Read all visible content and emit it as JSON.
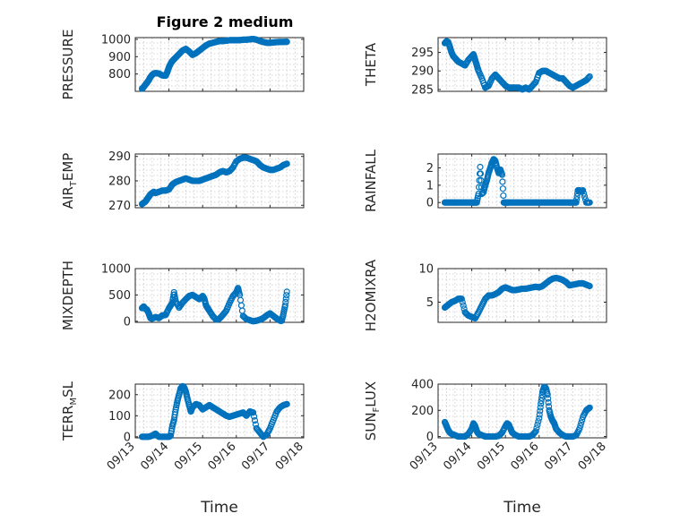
{
  "figure_title": "Figure 2 medium",
  "chart_data": [
    {
      "type": "scatter",
      "title": "Figure 2 medium",
      "ylabel": "PRESSURE",
      "xlabel": "",
      "xlim": [
        0,
        5
      ],
      "ylim": [
        700,
        1010
      ],
      "yticks": [
        800,
        900,
        1000
      ],
      "grid": true,
      "xticklabels": [
        "09/13",
        "09/14",
        "09/15",
        "09/16",
        "09/17",
        "09/18"
      ],
      "x": [
        0.2,
        0.22,
        0.25,
        0.3,
        0.35,
        0.4,
        0.45,
        0.5,
        0.55,
        0.6,
        0.7,
        0.8,
        0.9,
        0.95,
        1.0,
        1.05,
        1.1,
        1.15,
        1.2,
        1.3,
        1.4,
        1.5,
        1.6,
        1.7,
        1.8,
        1.9,
        2.0,
        2.1,
        2.2,
        2.3,
        2.4,
        2.5,
        2.6,
        2.7,
        2.8,
        2.9,
        3.0,
        3.1,
        3.2,
        3.3,
        3.4,
        3.5,
        3.6,
        3.7,
        3.8,
        3.9,
        4.0,
        4.1,
        4.2,
        4.3,
        4.4,
        4.5
      ],
      "y": [
        715,
        718,
        725,
        738,
        750,
        765,
        782,
        795,
        802,
        805,
        803,
        792,
        790,
        810,
        840,
        860,
        875,
        885,
        895,
        915,
        935,
        945,
        930,
        910,
        920,
        935,
        950,
        965,
        975,
        980,
        985,
        990,
        990,
        992,
        995,
        995,
        995,
        995,
        998,
        998,
        1000,
        1002,
        998,
        990,
        985,
        980,
        980,
        982,
        984,
        985,
        985,
        986
      ]
    },
    {
      "type": "scatter",
      "ylabel": "THETA",
      "xlabel": "",
      "xlim": [
        0,
        5
      ],
      "ylim": [
        284.5,
        299
      ],
      "yticks": [
        285,
        290,
        295
      ],
      "grid": true,
      "xticklabels": [
        "09/13",
        "09/14",
        "09/15",
        "09/16",
        "09/17",
        "09/18"
      ],
      "x": [
        0.2,
        0.25,
        0.3,
        0.35,
        0.4,
        0.45,
        0.5,
        0.55,
        0.6,
        0.7,
        0.8,
        0.9,
        1.0,
        1.05,
        1.1,
        1.15,
        1.2,
        1.3,
        1.4,
        1.5,
        1.6,
        1.7,
        1.8,
        1.9,
        2.0,
        2.1,
        2.2,
        2.3,
        2.4,
        2.5,
        2.6,
        2.7,
        2.8,
        2.9,
        3.0,
        3.1,
        3.2,
        3.3,
        3.4,
        3.5,
        3.6,
        3.7,
        3.8,
        3.9,
        4.0,
        4.1,
        4.2,
        4.3,
        4.4,
        4.5
      ],
      "y": [
        297.5,
        298,
        297.8,
        296.5,
        295,
        294,
        293.5,
        293,
        292.5,
        292,
        291.5,
        293,
        294,
        294.5,
        293,
        291.5,
        290,
        288,
        285.5,
        286,
        288,
        289,
        288,
        287,
        286,
        285.5,
        285.5,
        285.5,
        285.5,
        285,
        285.5,
        285,
        286,
        287,
        289.5,
        290,
        290,
        289.5,
        289,
        288.5,
        288,
        288,
        287,
        286,
        285.5,
        286,
        286.5,
        287,
        287.5,
        288.5
      ]
    },
    {
      "type": "scatter",
      "ylabel": "AIR_TEMP",
      "ylabel_main": "AIR",
      "ylabel_sub": "T",
      "ylabel_rest": "EMP",
      "xlabel": "",
      "xlim": [
        0,
        5
      ],
      "ylim": [
        269,
        291
      ],
      "yticks": [
        270,
        280,
        290
      ],
      "grid": true,
      "xticklabels": [
        "09/13",
        "09/14",
        "09/15",
        "09/16",
        "09/17",
        "09/18"
      ],
      "x": [
        0.2,
        0.25,
        0.3,
        0.35,
        0.4,
        0.45,
        0.5,
        0.55,
        0.6,
        0.7,
        0.8,
        0.9,
        1.0,
        1.1,
        1.2,
        1.3,
        1.4,
        1.5,
        1.6,
        1.7,
        1.8,
        1.9,
        2.0,
        2.1,
        2.2,
        2.3,
        2.4,
        2.5,
        2.6,
        2.7,
        2.8,
        2.9,
        3.0,
        3.1,
        3.2,
        3.3,
        3.4,
        3.5,
        3.6,
        3.7,
        3.8,
        3.9,
        4.0,
        4.1,
        4.2,
        4.3,
        4.4,
        4.5
      ],
      "y": [
        270.5,
        271,
        271.5,
        272.5,
        273.5,
        274.5,
        275,
        275.5,
        275,
        275.5,
        276,
        276,
        276.5,
        278.5,
        279.5,
        280,
        280.5,
        281,
        280.5,
        280,
        280,
        280,
        280.5,
        281,
        281.5,
        282,
        282.5,
        283.5,
        284,
        283.5,
        284,
        285.5,
        288,
        289,
        289.5,
        289.5,
        289,
        288.5,
        288,
        286.5,
        285.5,
        285,
        284.5,
        284.5,
        285,
        285.5,
        286.5,
        287
      ]
    },
    {
      "type": "scatter",
      "ylabel": "RAINFALL",
      "xlabel": "",
      "xlim": [
        0,
        5
      ],
      "ylim": [
        -0.3,
        2.8
      ],
      "yticks": [
        0,
        1,
        2
      ],
      "grid": true,
      "xticklabels": [
        "09/13",
        "09/14",
        "09/15",
        "09/16",
        "09/17",
        "09/18"
      ],
      "x": [
        0.2,
        0.3,
        0.4,
        0.5,
        0.6,
        0.7,
        0.8,
        0.9,
        1.0,
        1.05,
        1.1,
        1.15,
        1.2,
        1.25,
        1.3,
        1.35,
        1.4,
        1.45,
        1.5,
        1.55,
        1.6,
        1.65,
        1.7,
        1.75,
        1.8,
        1.85,
        1.9,
        1.95,
        2.0,
        2.05,
        2.1,
        2.2,
        2.3,
        2.4,
        2.5,
        2.6,
        2.7,
        2.8,
        2.9,
        3.0,
        3.1,
        3.2,
        3.3,
        3.4,
        3.5,
        3.6,
        3.7,
        3.8,
        3.9,
        4.0,
        4.1,
        4.15,
        4.2,
        4.25,
        4.3,
        4.4,
        4.5
      ],
      "y": [
        0,
        0,
        0,
        0,
        0,
        0,
        0,
        0,
        0,
        0,
        0,
        0,
        0.5,
        2.05,
        0.5,
        0.6,
        1.0,
        1.3,
        1.7,
        2.0,
        2.3,
        2.5,
        2.4,
        2.0,
        1.7,
        1.9,
        1.6,
        0,
        0,
        0,
        0,
        0,
        0,
        0,
        0,
        0,
        0,
        0,
        0,
        0,
        0,
        0,
        0,
        0,
        0,
        0,
        0,
        0,
        0,
        0,
        0,
        0.7,
        0.7,
        0.65,
        0.7,
        0,
        0
      ]
    },
    {
      "type": "scatter",
      "ylabel": "MIXDEPTH",
      "xlabel": "",
      "xlim": [
        0,
        5
      ],
      "ylim": [
        -20,
        1000
      ],
      "yticks": [
        0,
        500,
        1000
      ],
      "grid": true,
      "xticklabels": [
        "09/13",
        "09/14",
        "09/15",
        "09/16",
        "09/17",
        "09/18"
      ],
      "x": [
        0.2,
        0.25,
        0.3,
        0.35,
        0.4,
        0.45,
        0.5,
        0.6,
        0.7,
        0.8,
        0.9,
        1.0,
        1.05,
        1.1,
        1.15,
        1.2,
        1.3,
        1.4,
        1.5,
        1.6,
        1.7,
        1.8,
        1.9,
        2.0,
        2.05,
        2.1,
        2.15,
        2.2,
        2.3,
        2.4,
        2.5,
        2.6,
        2.7,
        2.8,
        2.9,
        3.0,
        3.05,
        3.1,
        3.2,
        3.3,
        3.4,
        3.5,
        3.6,
        3.7,
        3.8,
        3.9,
        4.0,
        4.1,
        4.2,
        4.3,
        4.35,
        4.4,
        4.45,
        4.5
      ],
      "y": [
        250,
        280,
        240,
        220,
        150,
        60,
        50,
        80,
        60,
        110,
        120,
        250,
        300,
        350,
        550,
        380,
        260,
        350,
        420,
        480,
        500,
        460,
        420,
        480,
        430,
        300,
        250,
        200,
        100,
        30,
        50,
        120,
        200,
        350,
        480,
        550,
        630,
        500,
        100,
        40,
        20,
        0,
        10,
        30,
        60,
        110,
        150,
        100,
        50,
        10,
        10,
        150,
        300,
        560
      ]
    },
    {
      "type": "scatter",
      "ylabel": "H2OMIXRA",
      "xlabel": "",
      "xlim": [
        0,
        5
      ],
      "ylim": [
        2,
        10
      ],
      "yticks": [
        5,
        10
      ],
      "grid": true,
      "xticklabels": [
        "09/13",
        "09/14",
        "09/15",
        "09/16",
        "09/17",
        "09/18"
      ],
      "x": [
        0.2,
        0.25,
        0.3,
        0.35,
        0.4,
        0.5,
        0.6,
        0.7,
        0.8,
        0.9,
        1.0,
        1.1,
        1.2,
        1.3,
        1.4,
        1.5,
        1.6,
        1.7,
        1.8,
        1.9,
        2.0,
        2.1,
        2.2,
        2.3,
        2.4,
        2.5,
        2.6,
        2.7,
        2.8,
        2.9,
        3.0,
        3.1,
        3.2,
        3.3,
        3.4,
        3.5,
        3.6,
        3.7,
        3.8,
        3.9,
        4.0,
        4.1,
        4.2,
        4.3,
        4.4,
        4.5
      ],
      "y": [
        4.2,
        4.4,
        4.6,
        4.8,
        5.0,
        5.2,
        5.5,
        5.5,
        3.5,
        3.0,
        2.8,
        2.6,
        3.5,
        4.5,
        5.5,
        6.0,
        6.0,
        6.2,
        6.5,
        7.0,
        7.2,
        7.0,
        6.8,
        6.8,
        6.9,
        7.0,
        7.0,
        7.1,
        7.2,
        7.3,
        7.2,
        7.4,
        7.8,
        8.2,
        8.5,
        8.6,
        8.5,
        8.3,
        8.0,
        7.5,
        7.6,
        7.7,
        7.8,
        7.8,
        7.6,
        7.4
      ]
    },
    {
      "type": "scatter",
      "ylabel": "TERR_MSL",
      "ylabel_main": "TERR",
      "ylabel_sub": "M",
      "ylabel_rest": "SL",
      "xlabel": "Time",
      "xlim": [
        0,
        5
      ],
      "ylim": [
        -5,
        250
      ],
      "yticks": [
        0,
        100,
        200
      ],
      "grid": true,
      "xticklabels": [
        "09/13",
        "09/14",
        "09/15",
        "09/16",
        "09/17",
        "09/18"
      ],
      "x": [
        0.2,
        0.3,
        0.4,
        0.5,
        0.6,
        0.7,
        0.8,
        0.9,
        1.0,
        1.05,
        1.1,
        1.15,
        1.2,
        1.25,
        1.3,
        1.35,
        1.4,
        1.45,
        1.5,
        1.55,
        1.6,
        1.65,
        1.7,
        1.8,
        1.9,
        2.0,
        2.1,
        2.2,
        2.3,
        2.4,
        2.5,
        2.6,
        2.7,
        2.8,
        2.9,
        3.0,
        3.1,
        3.2,
        3.3,
        3.4,
        3.5,
        3.6,
        3.7,
        3.8,
        3.9,
        4.0,
        4.1,
        4.2,
        4.3,
        4.4,
        4.5
      ],
      "y": [
        0,
        0,
        0,
        5,
        15,
        0,
        0,
        0,
        0,
        5,
        50,
        80,
        130,
        170,
        200,
        230,
        240,
        235,
        215,
        180,
        150,
        120,
        140,
        155,
        150,
        130,
        140,
        150,
        140,
        130,
        120,
        110,
        100,
        95,
        100,
        105,
        110,
        115,
        100,
        120,
        115,
        40,
        20,
        0,
        10,
        40,
        80,
        120,
        140,
        150,
        155
      ]
    },
    {
      "type": "scatter",
      "ylabel": "SUN_FLUX",
      "ylabel_main": "SUN",
      "ylabel_sub": "F",
      "ylabel_rest": "LUX",
      "xlabel": "Time",
      "xlim": [
        0,
        5
      ],
      "ylim": [
        -10,
        400
      ],
      "yticks": [
        0,
        200,
        400
      ],
      "grid": true,
      "xticklabels": [
        "09/13",
        "09/14",
        "09/15",
        "09/16",
        "09/17",
        "09/18"
      ],
      "x": [
        0.2,
        0.25,
        0.3,
        0.35,
        0.4,
        0.5,
        0.6,
        0.7,
        0.8,
        0.9,
        1.0,
        1.05,
        1.1,
        1.15,
        1.2,
        1.3,
        1.4,
        1.5,
        1.6,
        1.7,
        1.8,
        1.9,
        2.0,
        2.05,
        2.1,
        2.15,
        2.2,
        2.3,
        2.4,
        2.5,
        2.6,
        2.7,
        2.8,
        2.9,
        3.0,
        3.05,
        3.1,
        3.15,
        3.2,
        3.25,
        3.3,
        3.35,
        3.4,
        3.45,
        3.5,
        3.6,
        3.7,
        3.8,
        3.9,
        4.0,
        4.1,
        4.2,
        4.3,
        4.4,
        4.45,
        4.5
      ],
      "y": [
        110,
        80,
        50,
        30,
        20,
        10,
        0,
        0,
        0,
        20,
        60,
        100,
        80,
        40,
        20,
        10,
        0,
        0,
        0,
        0,
        5,
        30,
        80,
        100,
        90,
        60,
        30,
        10,
        0,
        0,
        0,
        0,
        10,
        40,
        140,
        250,
        340,
        380,
        370,
        320,
        200,
        150,
        120,
        100,
        60,
        30,
        10,
        0,
        0,
        0,
        10,
        60,
        150,
        200,
        210,
        220
      ]
    }
  ]
}
